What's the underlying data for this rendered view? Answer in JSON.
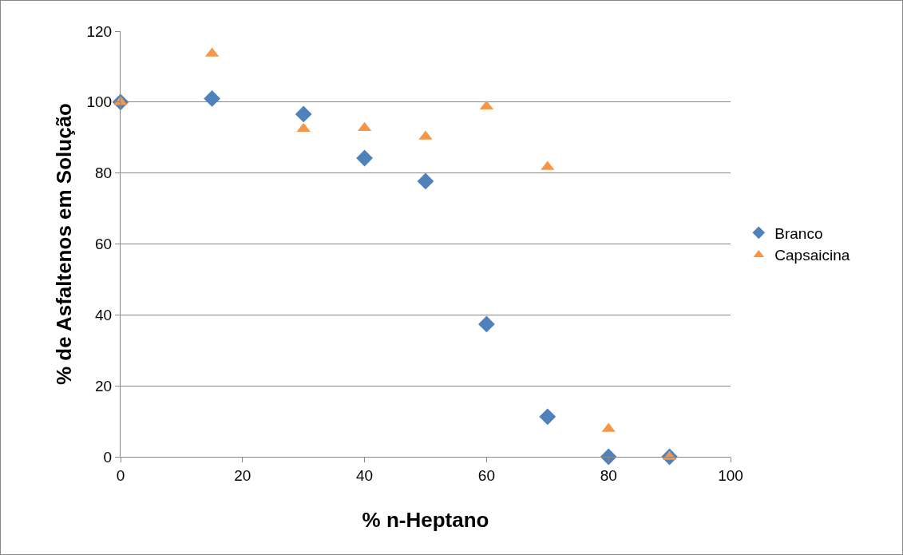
{
  "chart_data": {
    "type": "scatter",
    "xlabel": "% n-Heptano",
    "ylabel": "% de Asfaltenos em Solução",
    "x": [
      0,
      15,
      30,
      40,
      50,
      60,
      70,
      80,
      90
    ],
    "series": [
      {
        "name": "Branco",
        "color": "#4f81bd",
        "marker": "diamond",
        "values": [
          100,
          101,
          96.6,
          84.2,
          77.7,
          37.4,
          11.3,
          0,
          0
        ]
      },
      {
        "name": "Capsaicina",
        "color": "#f79646",
        "marker": "triangle",
        "values": [
          100,
          113.7,
          92.5,
          92.7,
          90.3,
          98.8,
          81.7,
          7.9,
          0
        ]
      }
    ],
    "xlim": [
      0,
      100
    ],
    "xticks": [
      0,
      20,
      40,
      60,
      80,
      100
    ],
    "ylim": [
      0,
      120
    ],
    "yticks": [
      0,
      20,
      40,
      60,
      80,
      100,
      120
    ],
    "grid": "y",
    "legend": "right"
  }
}
